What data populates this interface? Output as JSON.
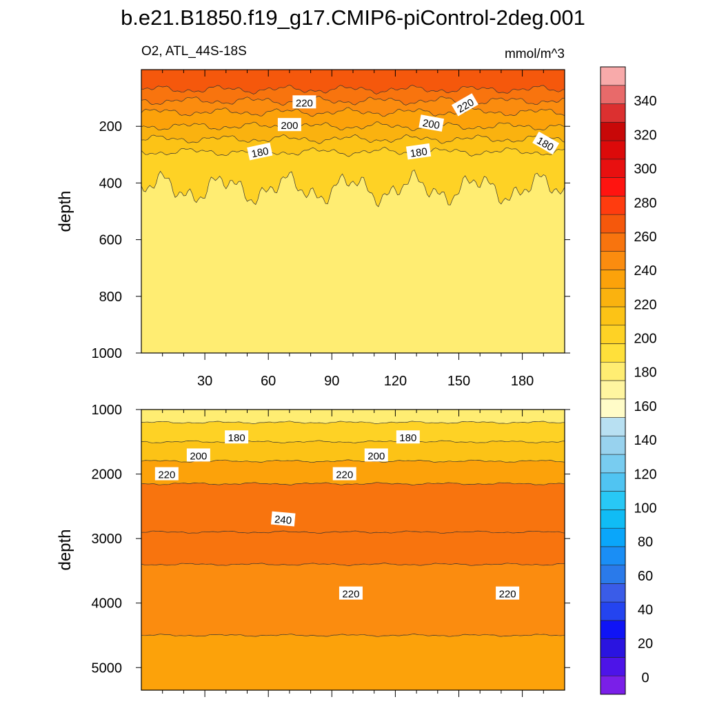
{
  "title": "b.e21.B1850.f19_g17.CMIP6-piControl-2deg.001",
  "variable_label": "O2, ATL_44S-18S",
  "units_label": "mmol/m^3",
  "chart_data": [
    {
      "type": "heatmap",
      "panel": "upper",
      "ylabel": "depth",
      "xlabel": "",
      "xlim": [
        0,
        200
      ],
      "ylim": [
        1000,
        0
      ],
      "xticks": [
        30,
        60,
        90,
        120,
        150,
        180
      ],
      "yticks": [
        200,
        400,
        600,
        800,
        1000
      ],
      "levels": [
        {
          "depth": 0,
          "value": 240
        },
        {
          "depth": 70,
          "value": 230
        },
        {
          "depth": 110,
          "value": 220
        },
        {
          "depth": 150,
          "value": 210
        },
        {
          "depth": 200,
          "value": 200
        },
        {
          "depth": 245,
          "value": 190
        },
        {
          "depth": 290,
          "value": 180
        },
        {
          "depth": 420,
          "value": 165
        }
      ],
      "contour_labels": [
        {
          "text": "220",
          "x": 77,
          "y": 115
        },
        {
          "text": "220",
          "x": 153,
          "y": 125,
          "rotate": -30
        },
        {
          "text": "200",
          "x": 70,
          "y": 195
        },
        {
          "text": "200",
          "x": 137,
          "y": 190,
          "rotate": 10
        },
        {
          "text": "180",
          "x": 56,
          "y": 290,
          "rotate": -12
        },
        {
          "text": "180",
          "x": 131,
          "y": 290,
          "rotate": -8
        },
        {
          "text": "180",
          "x": 191,
          "y": 260,
          "rotate": 30
        }
      ]
    },
    {
      "type": "heatmap",
      "panel": "lower",
      "ylabel": "depth",
      "xlabel": "",
      "xlim": [
        0,
        200
      ],
      "ylim": [
        5350,
        1000
      ],
      "yticks": [
        1000,
        2000,
        3000,
        4000,
        5000
      ],
      "levels": [
        {
          "depth": 1000,
          "value": 165
        },
        {
          "depth": 1200,
          "value": 180
        },
        {
          "depth": 1500,
          "value": 190
        },
        {
          "depth": 1800,
          "value": 210
        },
        {
          "depth": 2150,
          "value": 230
        },
        {
          "depth": 2900,
          "value": 230
        },
        {
          "depth": 3400,
          "value": 220
        },
        {
          "depth": 4500,
          "value": 210
        }
      ],
      "contour_labels": [
        {
          "text": "180",
          "x": 45,
          "y": 1430
        },
        {
          "text": "180",
          "x": 126,
          "y": 1430
        },
        {
          "text": "200",
          "x": 27,
          "y": 1710
        },
        {
          "text": "200",
          "x": 111,
          "y": 1710
        },
        {
          "text": "220",
          "x": 12,
          "y": 2000
        },
        {
          "text": "220",
          "x": 96,
          "y": 2000
        },
        {
          "text": "240",
          "x": 67,
          "y": 2700,
          "rotate": 5
        },
        {
          "text": "220",
          "x": 99,
          "y": 3850
        },
        {
          "text": "220",
          "x": 173,
          "y": 3850
        }
      ]
    },
    {
      "type": "colorbar",
      "min": -10,
      "max": 360,
      "step": 10,
      "tick_labels": [
        "0",
        "20",
        "40",
        "60",
        "80",
        "100",
        "120",
        "140",
        "160",
        "180",
        "200",
        "220",
        "240",
        "260",
        "280",
        "300",
        "320",
        "340"
      ],
      "colors": [
        "#7a1fe8",
        "#4d14e8",
        "#2a14e0",
        "#0f14f5",
        "#2444f0",
        "#3a5ce8",
        "#2a7aea",
        "#1a8ef5",
        "#0aa6fa",
        "#10bcf5",
        "#28c8f5",
        "#50c4f2",
        "#78ccf0",
        "#98d2ee",
        "#b8e0f2",
        "#fffcc8",
        "#fff5a0",
        "#ffed72",
        "#ffe03a",
        "#fed225",
        "#fcc316",
        "#fab20f",
        "#fca20a",
        "#fb8c0f",
        "#f8740e",
        "#f5580c",
        "#ff3c0f",
        "#ff1410",
        "#e81010",
        "#dc0a0a",
        "#c80808",
        "#dc3030",
        "#e86a6a",
        "#f8aaaa"
      ]
    }
  ]
}
